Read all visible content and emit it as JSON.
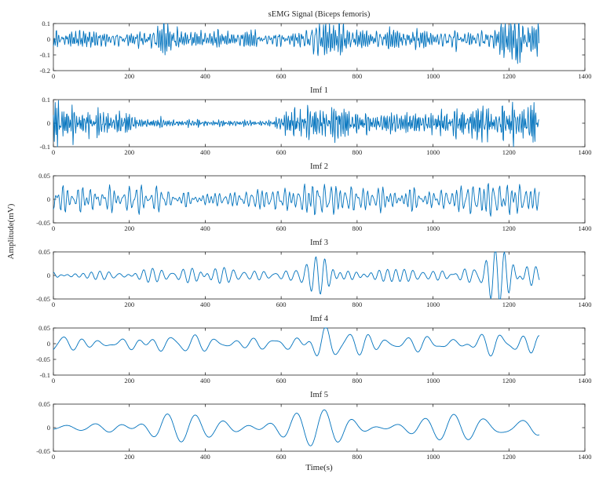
{
  "figure": {
    "background": "#ffffff",
    "line_color": "#0072BD",
    "axis_color": "#262626",
    "xlabel": "Time(s)",
    "ylabel": "Amplitude(mV)"
  },
  "chart_data": [
    {
      "type": "line",
      "title": "sEMG Signal (Biceps femoris)",
      "xlim": [
        0,
        1400
      ],
      "xticks": [
        0,
        200,
        400,
        600,
        800,
        1000,
        1200,
        1400
      ],
      "ylim": [
        -0.2,
        0.1
      ],
      "yticks": [
        0.1,
        0,
        -0.1,
        -0.2
      ],
      "x_data_range": [
        0,
        1280
      ],
      "grid": false,
      "legend": null,
      "signal": {
        "kind": "noise",
        "seed": 3,
        "base_period": 7,
        "components": 14,
        "envelope": [
          [
            0,
            0.05
          ],
          [
            60,
            0.045
          ],
          [
            120,
            0.055
          ],
          [
            180,
            0.05
          ],
          [
            240,
            0.05
          ],
          [
            280,
            0.09
          ],
          [
            300,
            0.1
          ],
          [
            330,
            0.05
          ],
          [
            380,
            0.04
          ],
          [
            440,
            0.045
          ],
          [
            500,
            0.04
          ],
          [
            560,
            0.045
          ],
          [
            620,
            0.05
          ],
          [
            660,
            0.06
          ],
          [
            690,
            0.13
          ],
          [
            715,
            0.17
          ],
          [
            740,
            0.1
          ],
          [
            780,
            0.06
          ],
          [
            840,
            0.05
          ],
          [
            900,
            0.055
          ],
          [
            960,
            0.05
          ],
          [
            1020,
            0.06
          ],
          [
            1060,
            0.075
          ],
          [
            1120,
            0.06
          ],
          [
            1160,
            0.08
          ],
          [
            1200,
            0.1
          ],
          [
            1220,
            0.19
          ],
          [
            1245,
            0.12
          ],
          [
            1280,
            0.06
          ]
        ]
      }
    },
    {
      "type": "line",
      "title": "Imf 1",
      "xlim": [
        0,
        1400
      ],
      "xticks": [
        0,
        200,
        400,
        600,
        800,
        1000,
        1200,
        1400
      ],
      "ylim": [
        -0.1,
        0.1
      ],
      "yticks": [
        0.1,
        0,
        -0.1
      ],
      "x_data_range": [
        0,
        1280
      ],
      "grid": false,
      "legend": null,
      "signal": {
        "kind": "noise",
        "seed": 7,
        "base_period": 5.5,
        "components": 12,
        "envelope": [
          [
            0,
            0.085
          ],
          [
            30,
            0.06
          ],
          [
            70,
            0.05
          ],
          [
            110,
            0.055
          ],
          [
            150,
            0.04
          ],
          [
            180,
            0.05
          ],
          [
            210,
            0.025
          ],
          [
            250,
            0.015
          ],
          [
            290,
            0.02
          ],
          [
            330,
            0.012
          ],
          [
            380,
            0.015
          ],
          [
            430,
            0.01
          ],
          [
            480,
            0.014
          ],
          [
            530,
            0.01
          ],
          [
            580,
            0.012
          ],
          [
            620,
            0.05
          ],
          [
            650,
            0.075
          ],
          [
            680,
            0.06
          ],
          [
            710,
            0.07
          ],
          [
            750,
            0.065
          ],
          [
            790,
            0.045
          ],
          [
            840,
            0.04
          ],
          [
            890,
            0.045
          ],
          [
            940,
            0.035
          ],
          [
            990,
            0.04
          ],
          [
            1040,
            0.06
          ],
          [
            1090,
            0.05
          ],
          [
            1140,
            0.065
          ],
          [
            1190,
            0.07
          ],
          [
            1230,
            0.08
          ],
          [
            1260,
            0.075
          ],
          [
            1280,
            0.04
          ]
        ]
      }
    },
    {
      "type": "line",
      "title": "Imf 2",
      "xlim": [
        0,
        1400
      ],
      "xticks": [
        0,
        200,
        400,
        600,
        800,
        1000,
        1200,
        1400
      ],
      "ylim": [
        -0.05,
        0.05
      ],
      "yticks": [
        0.05,
        0,
        -0.05
      ],
      "x_data_range": [
        0,
        1280
      ],
      "grid": false,
      "legend": null,
      "signal": {
        "kind": "smooth",
        "seed": 13,
        "base_period": 13,
        "components": 6,
        "envelope": [
          [
            0,
            0.04
          ],
          [
            50,
            0.035
          ],
          [
            110,
            0.04
          ],
          [
            170,
            0.03
          ],
          [
            230,
            0.035
          ],
          [
            290,
            0.025
          ],
          [
            350,
            0.02
          ],
          [
            410,
            0.025
          ],
          [
            470,
            0.02
          ],
          [
            530,
            0.025
          ],
          [
            590,
            0.03
          ],
          [
            650,
            0.035
          ],
          [
            685,
            0.055
          ],
          [
            710,
            0.05
          ],
          [
            750,
            0.035
          ],
          [
            810,
            0.03
          ],
          [
            870,
            0.035
          ],
          [
            930,
            0.04
          ],
          [
            980,
            0.03
          ],
          [
            1030,
            0.022
          ],
          [
            1080,
            0.035
          ],
          [
            1130,
            0.045
          ],
          [
            1180,
            0.05
          ],
          [
            1230,
            0.048
          ],
          [
            1280,
            0.028
          ]
        ]
      }
    },
    {
      "type": "line",
      "title": "Imf 3",
      "xlim": [
        0,
        1400
      ],
      "xticks": [
        0,
        200,
        400,
        600,
        800,
        1000,
        1200,
        1400
      ],
      "ylim": [
        -0.05,
        0.05
      ],
      "yticks": [
        0.05,
        0,
        -0.05
      ],
      "x_data_range": [
        0,
        1280
      ],
      "grid": false,
      "legend": null,
      "signal": {
        "kind": "smooth",
        "seed": 21,
        "base_period": 26,
        "components": 5,
        "envelope": [
          [
            0,
            0.014
          ],
          [
            70,
            0.012
          ],
          [
            130,
            0.02
          ],
          [
            175,
            0.032
          ],
          [
            220,
            0.025
          ],
          [
            280,
            0.015
          ],
          [
            340,
            0.018
          ],
          [
            400,
            0.02
          ],
          [
            460,
            0.014
          ],
          [
            520,
            0.012
          ],
          [
            580,
            0.016
          ],
          [
            640,
            0.022
          ],
          [
            685,
            0.042
          ],
          [
            715,
            0.046
          ],
          [
            760,
            0.022
          ],
          [
            820,
            0.016
          ],
          [
            880,
            0.02
          ],
          [
            940,
            0.026
          ],
          [
            1000,
            0.02
          ],
          [
            1060,
            0.03
          ],
          [
            1110,
            0.04
          ],
          [
            1150,
            0.055
          ],
          [
            1200,
            0.042
          ],
          [
            1245,
            0.036
          ],
          [
            1280,
            0.02
          ]
        ]
      }
    },
    {
      "type": "line",
      "title": "Imf 4",
      "xlim": [
        0,
        1400
      ],
      "xticks": [
        0,
        200,
        400,
        600,
        800,
        1000,
        1200,
        1400
      ],
      "ylim": [
        -0.1,
        0.05
      ],
      "yticks": [
        0.05,
        0,
        -0.05,
        -0.1
      ],
      "x_data_range": [
        0,
        1280
      ],
      "grid": false,
      "legend": null,
      "signal": {
        "kind": "smooth",
        "seed": 35,
        "base_period": 48,
        "components": 4,
        "envelope": [
          [
            0,
            0.032
          ],
          [
            60,
            0.025
          ],
          [
            130,
            0.022
          ],
          [
            200,
            0.03
          ],
          [
            270,
            0.036
          ],
          [
            330,
            0.03
          ],
          [
            390,
            0.022
          ],
          [
            450,
            0.026
          ],
          [
            510,
            0.02
          ],
          [
            570,
            0.024
          ],
          [
            630,
            0.03
          ],
          [
            680,
            0.055
          ],
          [
            715,
            0.066
          ],
          [
            760,
            0.045
          ],
          [
            820,
            0.04
          ],
          [
            880,
            0.024
          ],
          [
            940,
            0.022
          ],
          [
            1000,
            0.028
          ],
          [
            1060,
            0.024
          ],
          [
            1120,
            0.035
          ],
          [
            1170,
            0.055
          ],
          [
            1220,
            0.06
          ],
          [
            1255,
            0.05
          ],
          [
            1280,
            0.03
          ]
        ]
      }
    },
    {
      "type": "line",
      "title": "Imf 5",
      "xlim": [
        0,
        1400
      ],
      "xticks": [
        0,
        200,
        400,
        600,
        800,
        1000,
        1200,
        1400
      ],
      "ylim": [
        -0.05,
        0.05
      ],
      "yticks": [
        0.05,
        0,
        -0.05
      ],
      "x_data_range": [
        0,
        1280
      ],
      "grid": false,
      "legend": null,
      "signal": {
        "kind": "smooth",
        "seed": 42,
        "base_period": 75,
        "components": 3,
        "envelope": [
          [
            0,
            0.004
          ],
          [
            80,
            0.006
          ],
          [
            130,
            0.012
          ],
          [
            180,
            0.022
          ],
          [
            230,
            0.03
          ],
          [
            290,
            0.032
          ],
          [
            350,
            0.024
          ],
          [
            420,
            0.016
          ],
          [
            490,
            0.013
          ],
          [
            560,
            0.018
          ],
          [
            620,
            0.026
          ],
          [
            680,
            0.031
          ],
          [
            740,
            0.03
          ],
          [
            800,
            0.02
          ],
          [
            860,
            0.013
          ],
          [
            920,
            0.014
          ],
          [
            980,
            0.02
          ],
          [
            1040,
            0.028
          ],
          [
            1100,
            0.034
          ],
          [
            1160,
            0.04
          ],
          [
            1220,
            0.042
          ],
          [
            1260,
            0.036
          ],
          [
            1280,
            0.028
          ]
        ]
      }
    }
  ]
}
